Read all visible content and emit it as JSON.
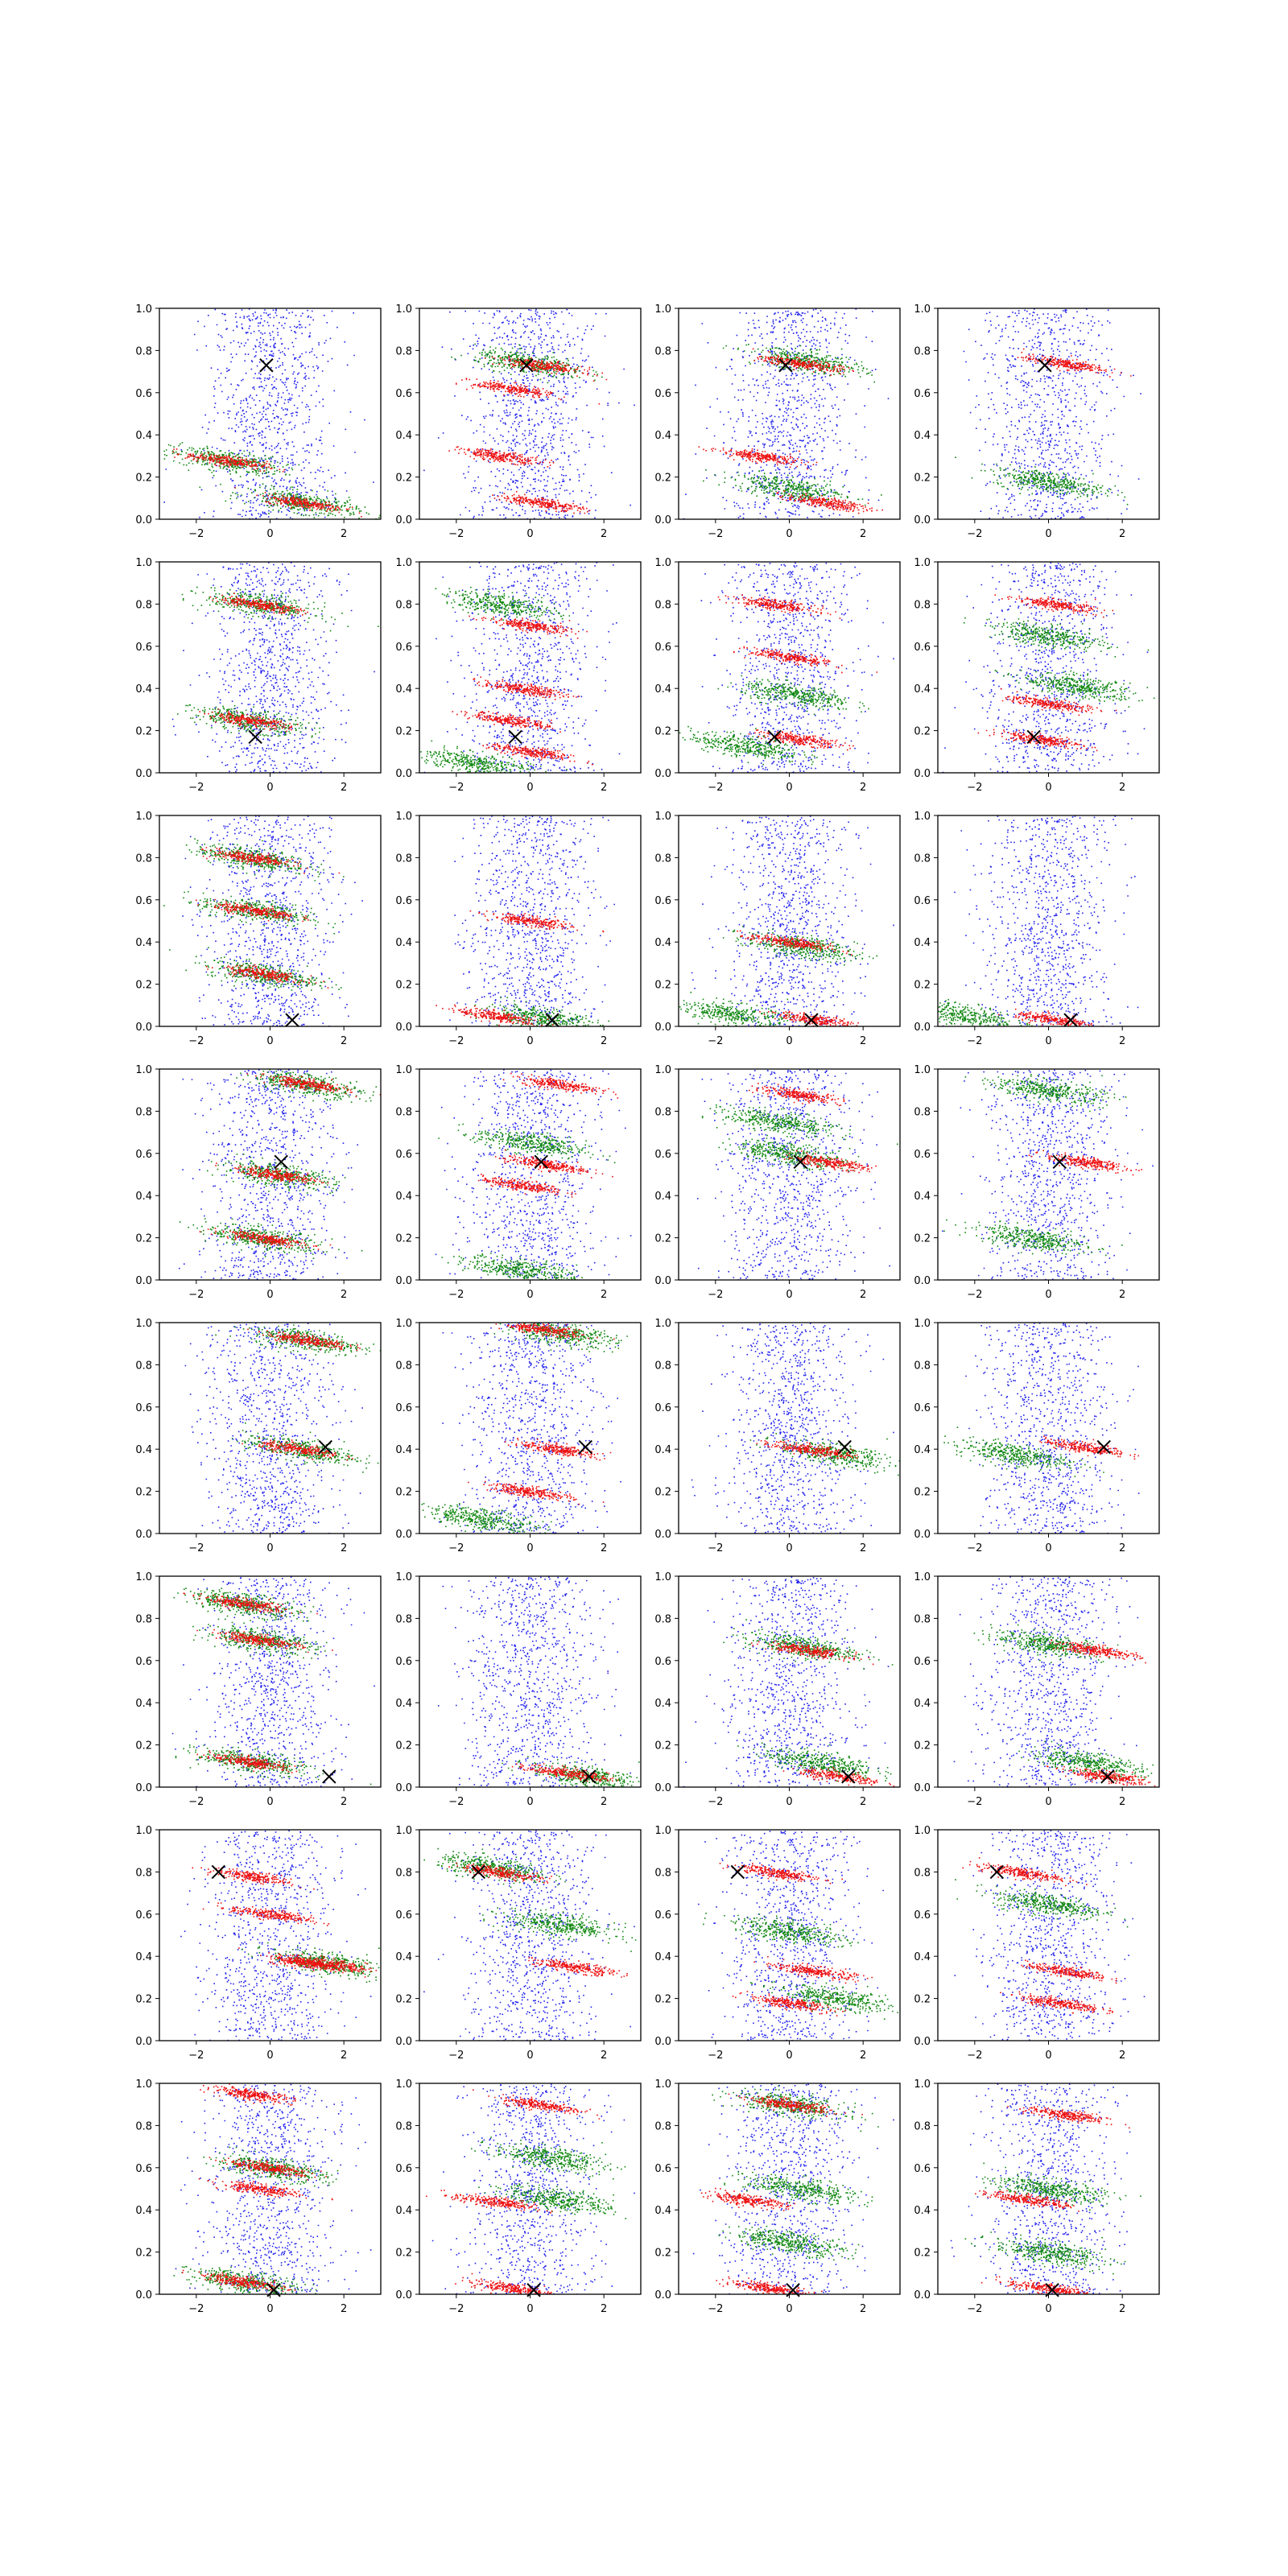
{
  "chart_data": {
    "type": "scatter",
    "layout": {
      "rows": 8,
      "cols": 4
    },
    "xlim": [
      -3,
      3
    ],
    "ylim": [
      0,
      1
    ],
    "x_ticks": [
      -2,
      0,
      2
    ],
    "x_tick_labels": [
      "−2",
      "0",
      "2"
    ],
    "y_ticks": [
      0.0,
      0.2,
      0.4,
      0.6,
      0.8,
      1.0
    ],
    "y_tick_labels": [
      "0.0",
      "0.2",
      "0.4",
      "0.6",
      "0.8",
      "1.0"
    ],
    "title": "",
    "xlabel": "",
    "ylabel": "",
    "grid": false,
    "colors": {
      "background": "#2222ee",
      "green": "#118811",
      "red": "#ee1111",
      "marker": "#000000"
    },
    "rows": [
      {
        "marker": [
          -0.1,
          0.73
        ],
        "panels": [
          {
            "green": [
              [
                -1.2,
                0.28
              ],
              [
                0.9,
                0.08
              ]
            ],
            "red": [
              [
                -1.2,
                0.28
              ],
              [
                0.9,
                0.08
              ]
            ]
          },
          {
            "green": [
              [
                0.0,
                0.74
              ]
            ],
            "red": [
              [
                0.3,
                0.73
              ],
              [
                -0.5,
                0.62
              ],
              [
                -0.8,
                0.3
              ],
              [
                0.3,
                0.08
              ]
            ]
          },
          {
            "green": [
              [
                0.5,
                0.75
              ],
              [
                0.0,
                0.15
              ]
            ],
            "red": [
              [
                0.3,
                0.74
              ],
              [
                -0.8,
                0.3
              ],
              [
                1.0,
                0.08
              ]
            ]
          },
          {
            "green": [
              [
                0.0,
                0.18
              ]
            ],
            "red": [
              [
                0.4,
                0.74
              ]
            ]
          }
        ]
      },
      {
        "marker": [
          -0.4,
          0.17
        ],
        "panels": [
          {
            "green": [
              [
                -0.3,
                0.8
              ],
              [
                -0.6,
                0.25
              ]
            ],
            "red": [
              [
                -0.3,
                0.8
              ],
              [
                -0.6,
                0.25
              ]
            ]
          },
          {
            "green": [
              [
                -0.8,
                0.8
              ],
              [
                -1.5,
                0.05
              ]
            ],
            "red": [
              [
                0.0,
                0.7
              ],
              [
                -0.2,
                0.4
              ],
              [
                -0.5,
                0.25
              ],
              [
                0.0,
                0.1
              ]
            ]
          },
          {
            "green": [
              [
                -1.2,
                0.13
              ],
              [
                0.2,
                0.37
              ]
            ],
            "red": [
              [
                -0.4,
                0.8
              ],
              [
                0.0,
                0.55
              ],
              [
                0.3,
                0.16
              ]
            ]
          },
          {
            "green": [
              [
                0.8,
                0.41
              ],
              [
                0.0,
                0.65
              ]
            ],
            "red": [
              [
                -0.2,
                0.16
              ],
              [
                0.0,
                0.33
              ],
              [
                0.2,
                0.8
              ]
            ]
          }
        ]
      },
      {
        "marker": [
          0.6,
          0.03
        ],
        "panels": [
          {
            "green": [
              [
                -0.4,
                0.55
              ],
              [
                -0.2,
                0.25
              ],
              [
                -0.5,
                0.8
              ]
            ],
            "red": [
              [
                -0.4,
                0.55
              ],
              [
                -0.2,
                0.25
              ],
              [
                -0.5,
                0.8
              ]
            ]
          },
          {
            "green": [
              [
                0.3,
                0.04
              ]
            ],
            "red": [
              [
                -0.9,
                0.05
              ],
              [
                0.0,
                0.5
              ]
            ]
          },
          {
            "green": [
              [
                -1.5,
                0.06
              ],
              [
                0.3,
                0.38
              ]
            ],
            "red": [
              [
                0.8,
                0.03
              ],
              [
                0.0,
                0.4
              ]
            ]
          },
          {
            "green": [
              [
                -2.4,
                0.06
              ]
            ],
            "red": [
              [
                0.2,
                0.03
              ]
            ]
          }
        ]
      },
      {
        "marker": [
          0.3,
          0.56
        ],
        "panels": [
          {
            "green": [
              [
                1.0,
                0.93
              ],
              [
                0.2,
                0.5
              ],
              [
                -0.2,
                0.2
              ]
            ],
            "red": [
              [
                1.0,
                0.93
              ],
              [
                0.2,
                0.5
              ],
              [
                -0.2,
                0.2
              ]
            ]
          },
          {
            "green": [
              [
                -0.2,
                0.05
              ],
              [
                0.0,
                0.65
              ]
            ],
            "red": [
              [
                0.8,
                0.93
              ],
              [
                0.4,
                0.55
              ],
              [
                -0.2,
                0.45
              ]
            ]
          },
          {
            "green": [
              [
                -0.3,
                0.75
              ],
              [
                0.0,
                0.6
              ]
            ],
            "red": [
              [
                1.0,
                0.56
              ],
              [
                0.3,
                0.88
              ]
            ]
          },
          {
            "green": [
              [
                -0.5,
                0.2
              ],
              [
                0.0,
                0.9
              ]
            ],
            "red": [
              [
                1.0,
                0.56
              ]
            ]
          }
        ]
      },
      {
        "marker": [
          1.5,
          0.41
        ],
        "panels": [
          {
            "green": [
              [
                1.0,
                0.92
              ],
              [
                0.8,
                0.4
              ]
            ],
            "red": [
              [
                1.0,
                0.92
              ],
              [
                0.8,
                0.4
              ]
            ]
          },
          {
            "green": [
              [
                -1.3,
                0.07
              ],
              [
                0.8,
                0.95
              ]
            ],
            "red": [
              [
                0.8,
                0.4
              ],
              [
                0.3,
                0.97
              ],
              [
                0.0,
                0.2
              ]
            ]
          },
          {
            "green": [
              [
                1.2,
                0.38
              ]
            ],
            "red": [
              [
                0.6,
                0.4
              ]
            ]
          },
          {
            "green": [
              [
                -1.0,
                0.38
              ]
            ],
            "red": [
              [
                1.0,
                0.41
              ]
            ]
          }
        ]
      },
      {
        "marker": [
          1.6,
          0.05
        ],
        "panels": [
          {
            "green": [
              [
                -0.5,
                0.12
              ],
              [
                -0.7,
                0.87
              ],
              [
                -0.3,
                0.7
              ]
            ],
            "red": [
              [
                -0.5,
                0.12
              ],
              [
                -0.7,
                0.87
              ],
              [
                -0.3,
                0.7
              ]
            ]
          },
          {
            "green": [
              [
                1.5,
                0.05
              ]
            ],
            "red": [
              [
                1.0,
                0.07
              ]
            ]
          },
          {
            "green": [
              [
                0.3,
                0.67
              ],
              [
                0.8,
                0.12
              ]
            ],
            "red": [
              [
                1.4,
                0.05
              ],
              [
                0.5,
                0.65
              ]
            ]
          },
          {
            "green": [
              [
                1.0,
                0.12
              ],
              [
                0.0,
                0.68
              ]
            ],
            "red": [
              [
                1.6,
                0.05
              ],
              [
                1.3,
                0.65
              ]
            ]
          }
        ]
      },
      {
        "marker": [
          -1.4,
          0.8
        ],
        "panels": [
          {
            "green": [
              [
                1.5,
                0.37
              ]
            ],
            "red": [
              [
                1.5,
                0.37
              ],
              [
                -0.5,
                0.78
              ],
              [
                0.0,
                0.6
              ],
              [
                1.0,
                0.37
              ]
            ]
          },
          {
            "green": [
              [
                -1.0,
                0.82
              ],
              [
                0.8,
                0.55
              ]
            ],
            "red": [
              [
                1.2,
                0.35
              ],
              [
                -0.8,
                0.8
              ]
            ]
          },
          {
            "green": [
              [
                1.2,
                0.2
              ],
              [
                0.0,
                0.52
              ]
            ],
            "red": [
              [
                -0.4,
                0.8
              ],
              [
                0.7,
                0.33
              ],
              [
                0.0,
                0.18
              ]
            ]
          },
          {
            "green": [
              [
                0.0,
                0.65
              ]
            ],
            "red": [
              [
                -0.8,
                0.8
              ],
              [
                0.5,
                0.33
              ],
              [
                0.3,
                0.18
              ]
            ]
          }
        ]
      },
      {
        "marker": [
          0.1,
          0.02
        ],
        "panels": [
          {
            "green": [
              [
                -0.7,
                0.06
              ],
              [
                0.0,
                0.6
              ]
            ],
            "red": [
              [
                -0.5,
                0.95
              ],
              [
                0.0,
                0.6
              ],
              [
                -0.3,
                0.5
              ],
              [
                -0.7,
                0.06
              ]
            ]
          },
          {
            "green": [
              [
                0.5,
                0.65
              ],
              [
                0.8,
                0.45
              ]
            ],
            "red": [
              [
                -1.0,
                0.44
              ],
              [
                0.3,
                0.9
              ],
              [
                -0.5,
                0.03
              ]
            ]
          },
          {
            "green": [
              [
                0.0,
                0.9
              ],
              [
                0.3,
                0.5
              ],
              [
                0.0,
                0.25
              ]
            ],
            "red": [
              [
                -1.2,
                0.45
              ],
              [
                -0.5,
                0.03
              ],
              [
                0.0,
                0.9
              ]
            ]
          },
          {
            "green": [
              [
                0.0,
                0.5
              ],
              [
                0.0,
                0.2
              ]
            ],
            "red": [
              [
                -0.5,
                0.45
              ],
              [
                0.5,
                0.85
              ],
              [
                0.0,
                0.03
              ]
            ]
          }
        ]
      }
    ]
  }
}
